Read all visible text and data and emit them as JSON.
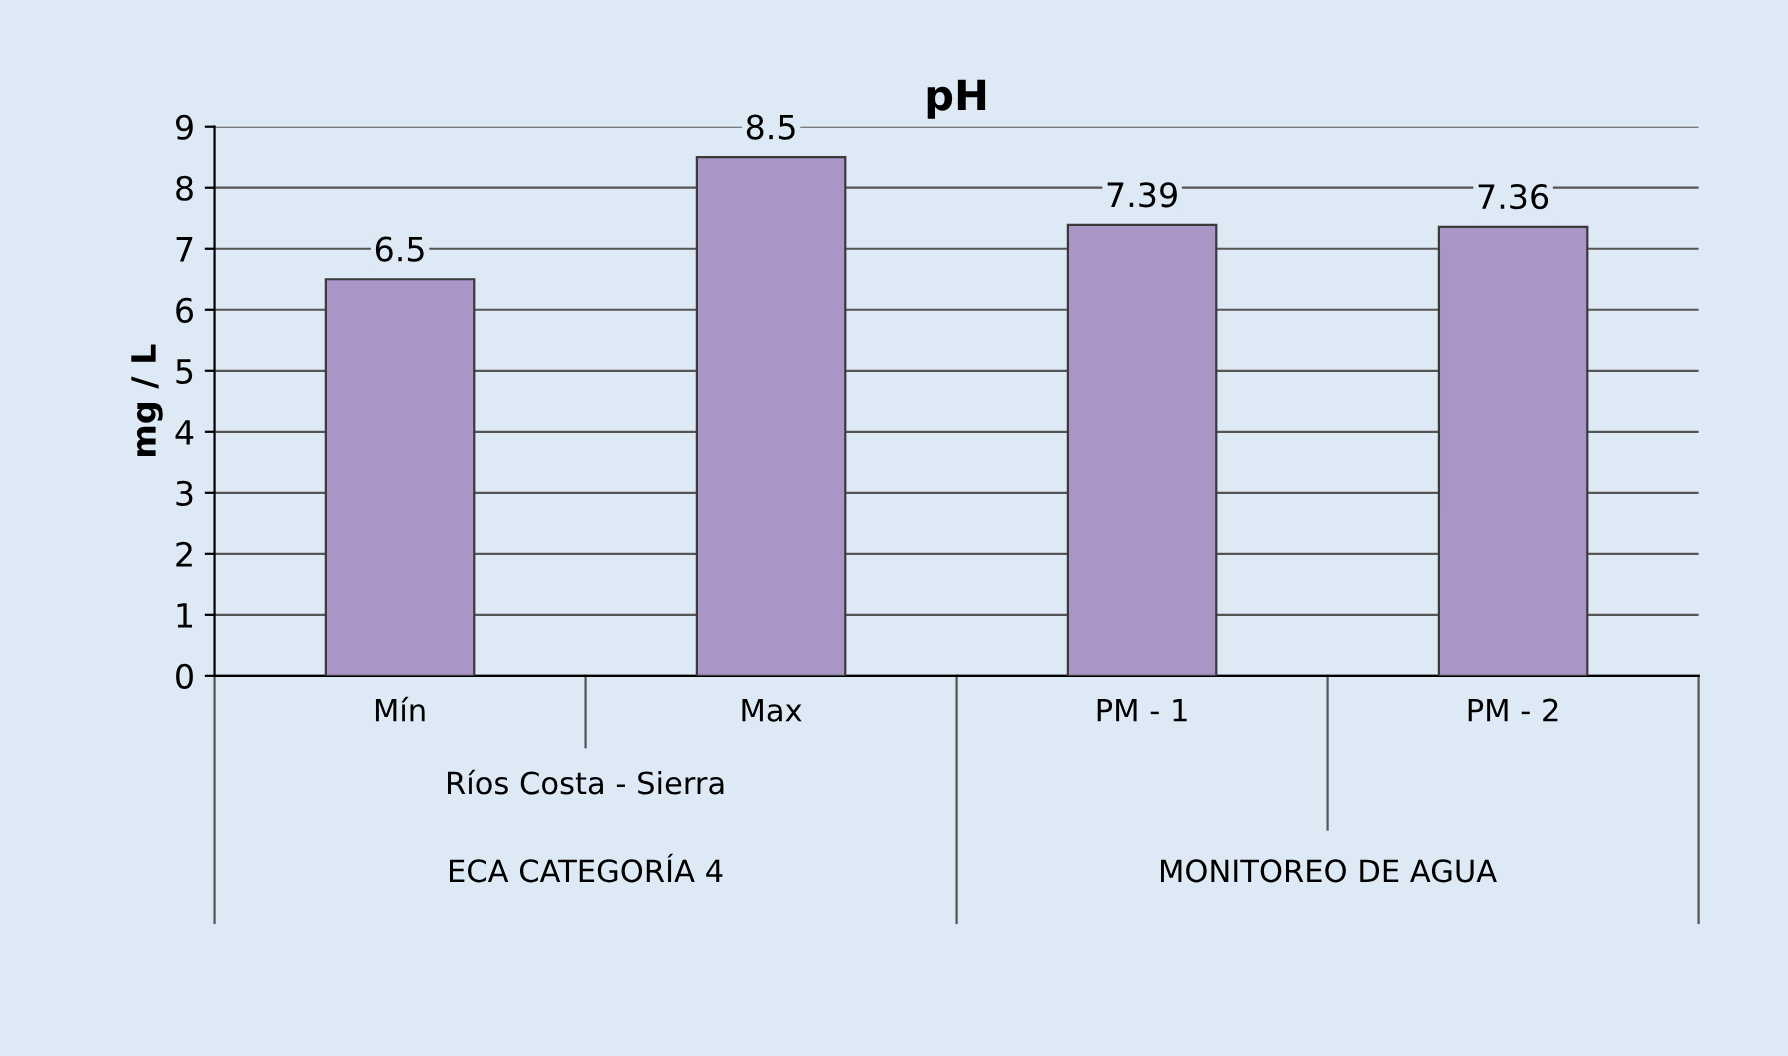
{
  "chart_data": {
    "type": "bar",
    "title": "pH",
    "ylabel": "mg / L",
    "categories": [
      "Mín",
      "Max",
      "PM - 1",
      "PM - 2"
    ],
    "values": [
      6.5,
      8.5,
      7.39,
      7.36
    ],
    "color": "#a996c6",
    "ylim": [
      0,
      9
    ],
    "yticks": [
      0,
      1,
      2,
      3,
      4,
      5,
      6,
      7,
      8,
      9
    ],
    "grid": "y",
    "data_labels": true,
    "annotations": [
      "Ríos Costa - Sierra",
      "ECA CATEGORÍA 4",
      "MONITOREO DE AGUA"
    ]
  }
}
